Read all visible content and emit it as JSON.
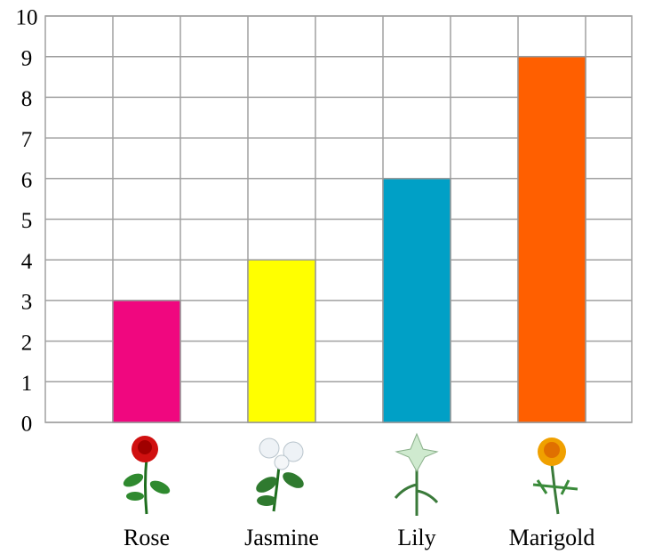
{
  "chart_data": {
    "type": "bar",
    "categories": [
      "Rose",
      "Jasmine",
      "Lily",
      "Marigold"
    ],
    "values": [
      3,
      4,
      6,
      9
    ],
    "colors": [
      "#f0077f",
      "#ffff00",
      "#00a0c6",
      "#ff5f00"
    ],
    "ylim": [
      0,
      10
    ],
    "yticks": [
      0,
      1,
      2,
      3,
      4,
      5,
      6,
      7,
      8,
      9,
      10
    ],
    "grid": true
  }
}
